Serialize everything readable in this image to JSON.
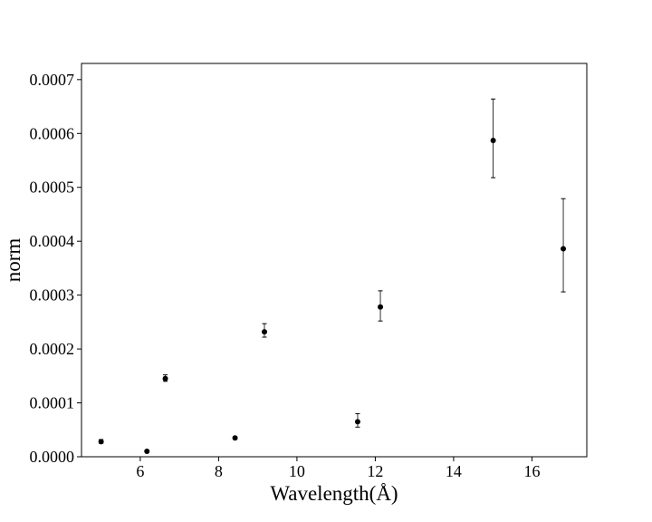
{
  "chart_data": {
    "type": "scatter",
    "title": "",
    "xlabel": "Wavelength(Å)",
    "ylabel": "norm",
    "xlim": [
      4.5,
      17.4
    ],
    "ylim": [
      0.0,
      0.00073
    ],
    "x_ticks": [
      6,
      8,
      10,
      12,
      14,
      16
    ],
    "x_tick_labels": [
      "6",
      "8",
      "10",
      "12",
      "14",
      "16"
    ],
    "y_ticks": [
      0.0,
      0.0001,
      0.0002,
      0.0003,
      0.0004,
      0.0005,
      0.0006,
      0.0007
    ],
    "y_tick_labels": [
      "0.0000",
      "0.0001",
      "0.0002",
      "0.0003",
      "0.0004",
      "0.0005",
      "0.0006",
      "0.0007"
    ],
    "grid": false,
    "marker_color": "#000000",
    "points": [
      {
        "x": 5.0,
        "y": 2.8e-05,
        "y_err_low": 2.5e-05,
        "y_err_high": 3.2e-05
      },
      {
        "x": 6.17,
        "y": 1e-05,
        "y_err_low": 9e-06,
        "y_err_high": 1.2e-05
      },
      {
        "x": 6.64,
        "y": 0.000145,
        "y_err_low": 0.00014,
        "y_err_high": 0.000152
      },
      {
        "x": 8.42,
        "y": 3.5e-05,
        "y_err_low": 3.3e-05,
        "y_err_high": 3.7e-05
      },
      {
        "x": 9.17,
        "y": 0.000232,
        "y_err_low": 0.000222,
        "y_err_high": 0.000247
      },
      {
        "x": 11.55,
        "y": 6.5e-05,
        "y_err_low": 5.5e-05,
        "y_err_high": 8e-05
      },
      {
        "x": 12.13,
        "y": 0.000278,
        "y_err_low": 0.000252,
        "y_err_high": 0.000308
      },
      {
        "x": 15.01,
        "y": 0.000587,
        "y_err_low": 0.000518,
        "y_err_high": 0.000664
      },
      {
        "x": 16.8,
        "y": 0.000386,
        "y_err_low": 0.000306,
        "y_err_high": 0.000479
      }
    ]
  }
}
